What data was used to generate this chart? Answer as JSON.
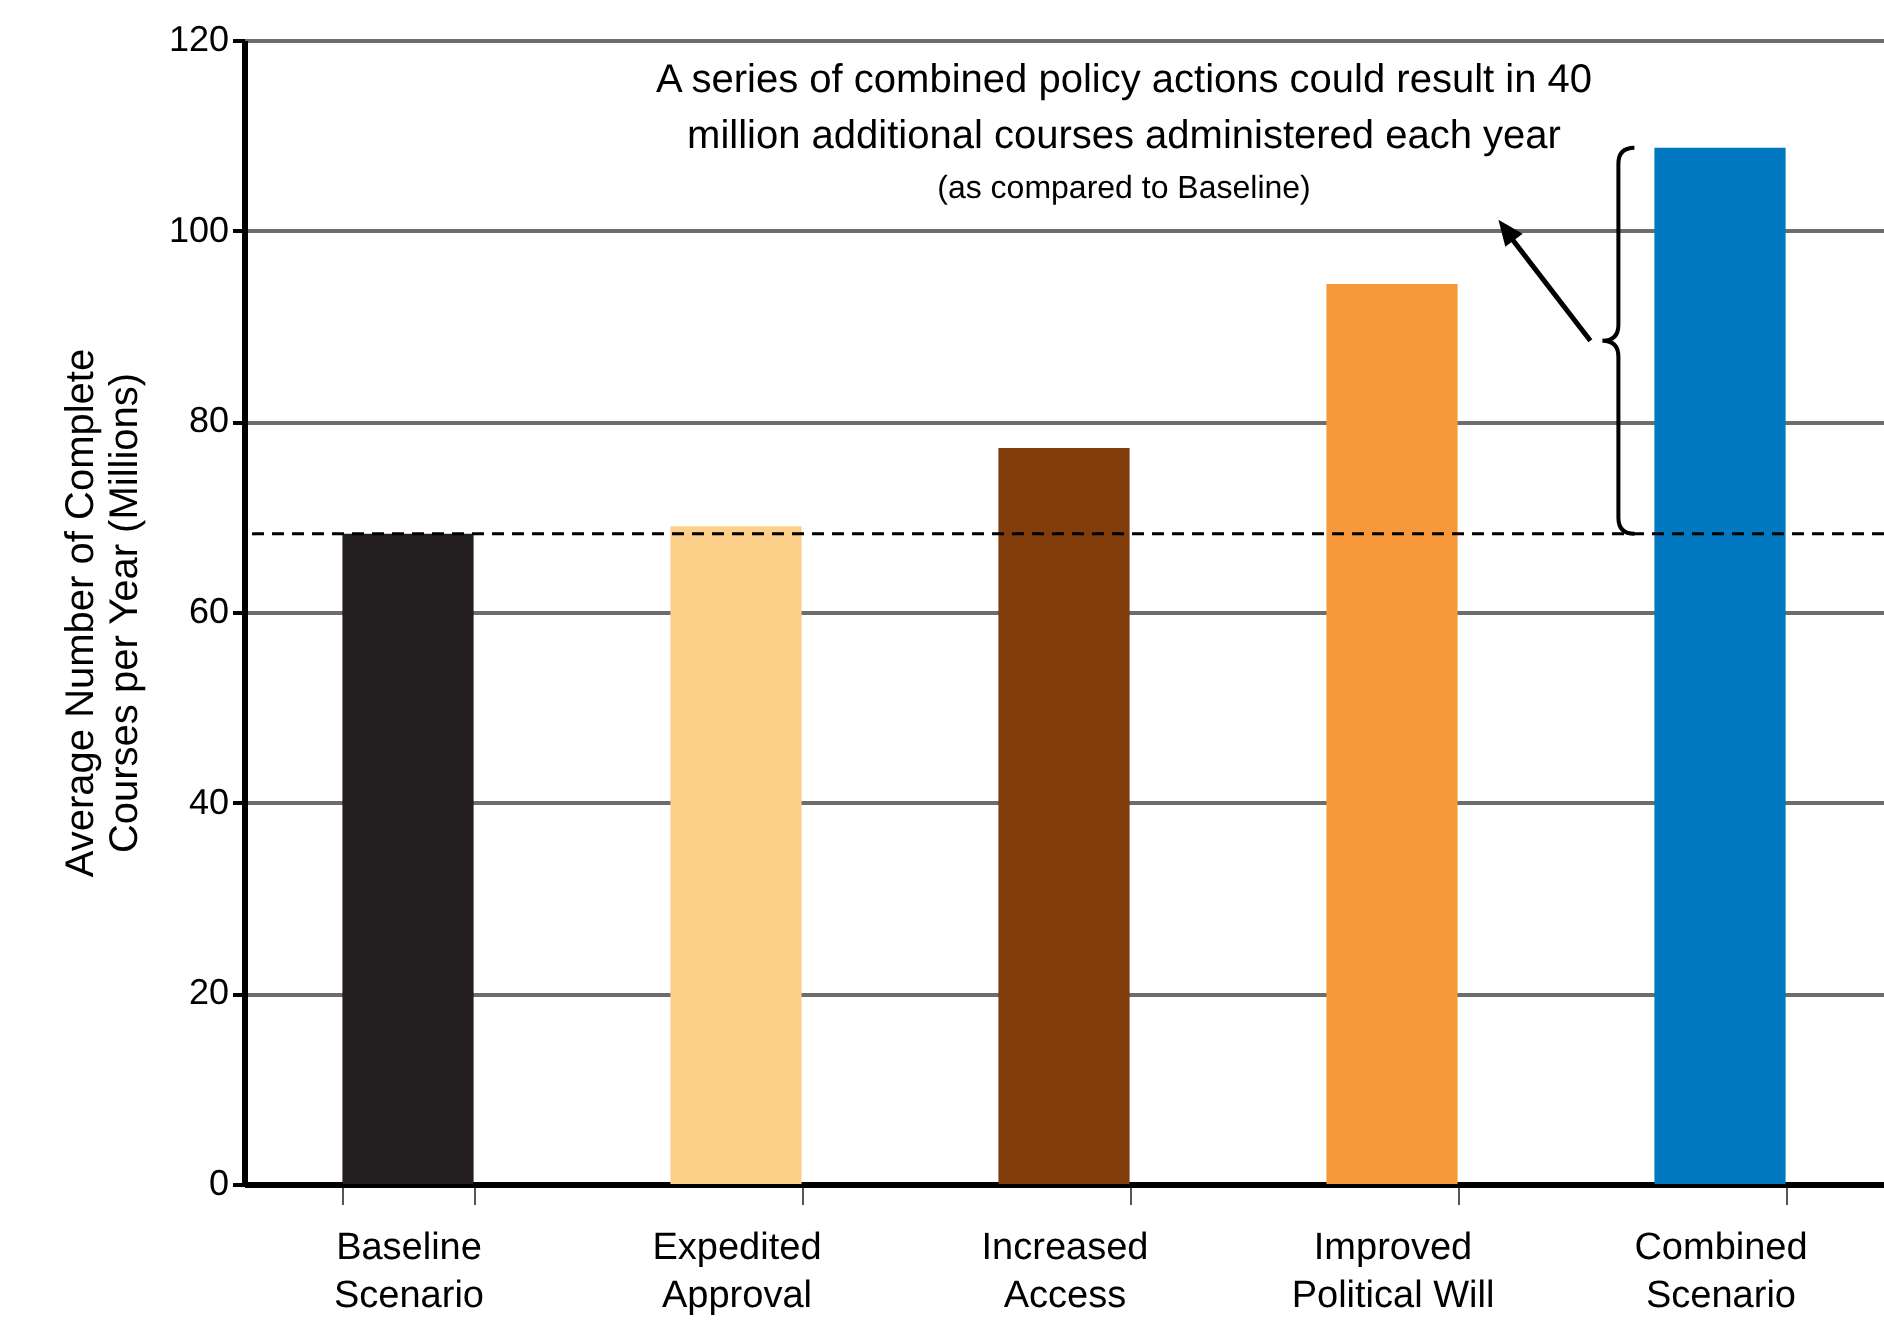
{
  "chart_data": {
    "type": "bar",
    "ylabel": "Average Number of Complete Courses per Year (Millions)",
    "categories": [
      "Baseline Scenario",
      "Expedited Approval",
      "Increased Access",
      "Improved Political Will",
      "Combined Scenario"
    ],
    "values": [
      68.2,
      69.0,
      77.2,
      94.4,
      108.7
    ],
    "colors": [
      "#231f20",
      "#fdd08a",
      "#833c0b",
      "#f7993a",
      "#0079c1"
    ],
    "ylim": [
      0,
      120
    ],
    "yticks": [
      0,
      20,
      40,
      60,
      80,
      100,
      120
    ],
    "grid": "y",
    "ref_lines": [
      {
        "axis": "y",
        "value": 68.2,
        "line_style": "dashed",
        "color": "#000000"
      }
    ],
    "annotations": [
      "A series of combined policy actions could result in 40 million additional courses administered each year",
      "(as compared to Baseline)"
    ]
  }
}
